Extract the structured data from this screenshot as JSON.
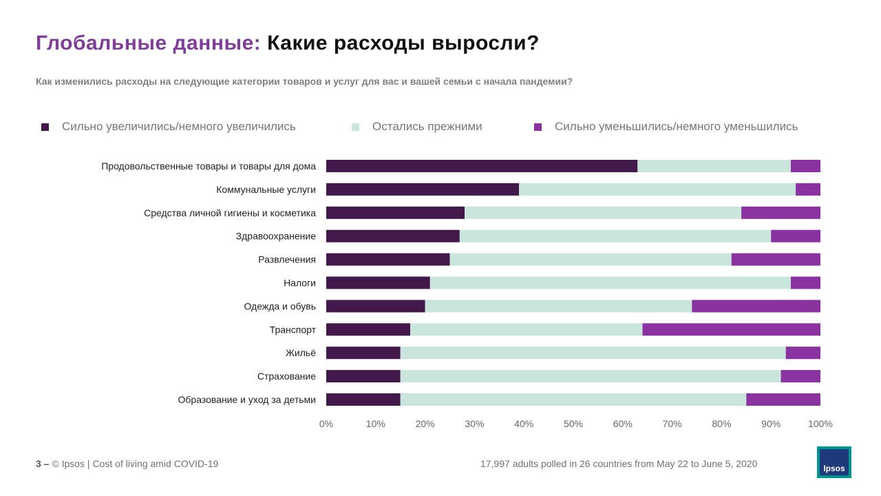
{
  "header": {
    "title_accent": "Глобальные данные:",
    "title_main": "Какие расходы выросли?",
    "subtitle": "Как изменились расходы на следующие категории товаров и услуг для вас и вашей семьи с начала пандемии?"
  },
  "footer": {
    "page_number": "3 –",
    "source": "© Ipsos | Cost of living amid COVID-19",
    "note": "17,997 adults polled in 26 countries from May 22 to June 5, 2020",
    "logo_text": "Ipsos"
  },
  "colors": {
    "increased": "#43184a",
    "same": "#c9e5dc",
    "decreased": "#8a32a0",
    "accent": "#7f3f98"
  },
  "chart_data": {
    "type": "bar",
    "orientation": "horizontal",
    "stacked": true,
    "categories": [
      "Продовольственные товары и товары для дома",
      "Коммунальные  услуги",
      "Средства личной  гигиены и косметика",
      "Здравоохранение",
      "Развлечения",
      "Налоги",
      "Одежда и обувь",
      "Транспорт",
      "Жильё",
      "Страхование",
      "Образование и уход за детьми"
    ],
    "series": [
      {
        "name": "Сильно увеличились/немного увеличились",
        "color": "#43184a",
        "values": [
          63,
          39,
          28,
          27,
          25,
          21,
          20,
          17,
          15,
          15,
          15
        ]
      },
      {
        "name": "Остались прежними",
        "color": "#c9e5dc",
        "values": [
          31,
          56,
          56,
          63,
          57,
          73,
          54,
          47,
          78,
          77,
          70
        ]
      },
      {
        "name": "Сильно уменьшились/немного уменьшились",
        "color": "#8a32a0",
        "values": [
          6,
          5,
          16,
          10,
          18,
          6,
          26,
          36,
          7,
          8,
          15
        ]
      }
    ],
    "xlim": [
      0,
      100
    ],
    "xticks": [
      "0%",
      "10%",
      "20%",
      "30%",
      "40%",
      "50%",
      "60%",
      "70%",
      "80%",
      "90%",
      "100%"
    ],
    "legend_position": "top",
    "grid": false
  }
}
